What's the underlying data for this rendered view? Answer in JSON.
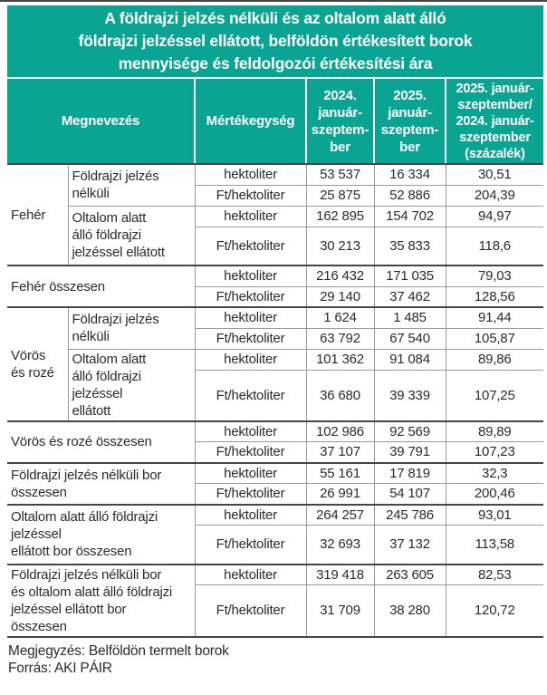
{
  "title": "A földrajzi jelzés nélküli és az oltalom alatt álló\nföldrajzi jelzéssel ellátott, belföldön értékesített borok\nmennyisége és feldolgozói értékesítési ára",
  "colors": {
    "accent": "#0aa592",
    "rule_dark": "#454545",
    "rule_thin": "#999999",
    "header_text": "#ffffff",
    "body_text": "#2b2b2b"
  },
  "header": {
    "megnevezes": "Megnevezés",
    "mertekegyseg": "Mértékegység",
    "col_2024": "2024.\njanuár-\nszeptem-\nber",
    "col_2025": "2025.\njanuár-\nszeptem-\nber",
    "col_pct": "2025. január-\nszeptember/\n2024. január-\nszeptember\n(százalék)"
  },
  "table": {
    "groups": {
      "feher": "Fehér",
      "voros": "Vörös\nés rozé"
    },
    "names": {
      "fjn": "Földrajzi jelzés\nnélküli",
      "ofj_feher": "Oltalom alatt\nálló földrajzi\njelzéssel ellátott",
      "ofj_voros": "Oltalom alatt\nálló földrajzi\njelzéssel\nellátott",
      "feher_osszesen": "Fehér összesen",
      "voros_osszesen": "Vörös és rozé összesen",
      "fjn_osszesen": "Földrajzi jelzés nélküli bor\nösszesen",
      "ofj_osszesen": "Oltalom alatt álló földrajzi\njelzéssel\nellátott bor összesen",
      "osszes": "Földrajzi jelzés nélküli bor\nés oltalom alatt álló földrajzi\njelzéssel ellátott bor\nösszesen"
    },
    "rows": [
      {
        "unit": "hektoliter",
        "v2024": "53 537",
        "v2025": "16 334",
        "pct": "30,51"
      },
      {
        "unit": "Ft/hektoliter",
        "v2024": "25 875",
        "v2025": "52 886",
        "pct": "204,39"
      },
      {
        "unit": "hektoliter",
        "v2024": "162 895",
        "v2025": "154 702",
        "pct": "94,97"
      },
      {
        "unit": "Ft/hektoliter",
        "v2024": "30 213",
        "v2025": "35 833",
        "pct": "118,6"
      },
      {
        "unit": "hektoliter",
        "v2024": "216 432",
        "v2025": "171 035",
        "pct": "79,03"
      },
      {
        "unit": "Ft/hektoliter",
        "v2024": "29 140",
        "v2025": "37 462",
        "pct": "128,56"
      },
      {
        "unit": "hektoliter",
        "v2024": "1 624",
        "v2025": "1 485",
        "pct": "91,44"
      },
      {
        "unit": "Ft/hektoliter",
        "v2024": "63 792",
        "v2025": "67 540",
        "pct": "105,87"
      },
      {
        "unit": "hektoliter",
        "v2024": "101 362",
        "v2025": "91 084",
        "pct": "89,86"
      },
      {
        "unit": "Ft/hektoliter",
        "v2024": "36 680",
        "v2025": "39 339",
        "pct": "107,25"
      },
      {
        "unit": "hektoliter",
        "v2024": "102 986",
        "v2025": "92 569",
        "pct": "89,89"
      },
      {
        "unit": "Ft/hektoliter",
        "v2024": "37 107",
        "v2025": "39 791",
        "pct": "107,23"
      },
      {
        "unit": "hektoliter",
        "v2024": "55 161",
        "v2025": "17 819",
        "pct": "32,3"
      },
      {
        "unit": "Ft/hektoliter",
        "v2024": "26 991",
        "v2025": "54 107",
        "pct": "200,46"
      },
      {
        "unit": "hektoliter",
        "v2024": "264 257",
        "v2025": "245 786",
        "pct": "93,01"
      },
      {
        "unit": "Ft/hektoliter",
        "v2024": "32 693",
        "v2025": "37 132",
        "pct": "113,58"
      },
      {
        "unit": "hektoliter",
        "v2024": "319 418",
        "v2025": "263 605",
        "pct": "82,53"
      },
      {
        "unit": "Ft/hektoliter",
        "v2024": "31 709",
        "v2025": "38 280",
        "pct": "120,72"
      }
    ]
  },
  "notes": {
    "megjegyzes": "Megjegyzés: Belföldön termelt borok",
    "forras": "Forrás: AKI PÁIR"
  }
}
